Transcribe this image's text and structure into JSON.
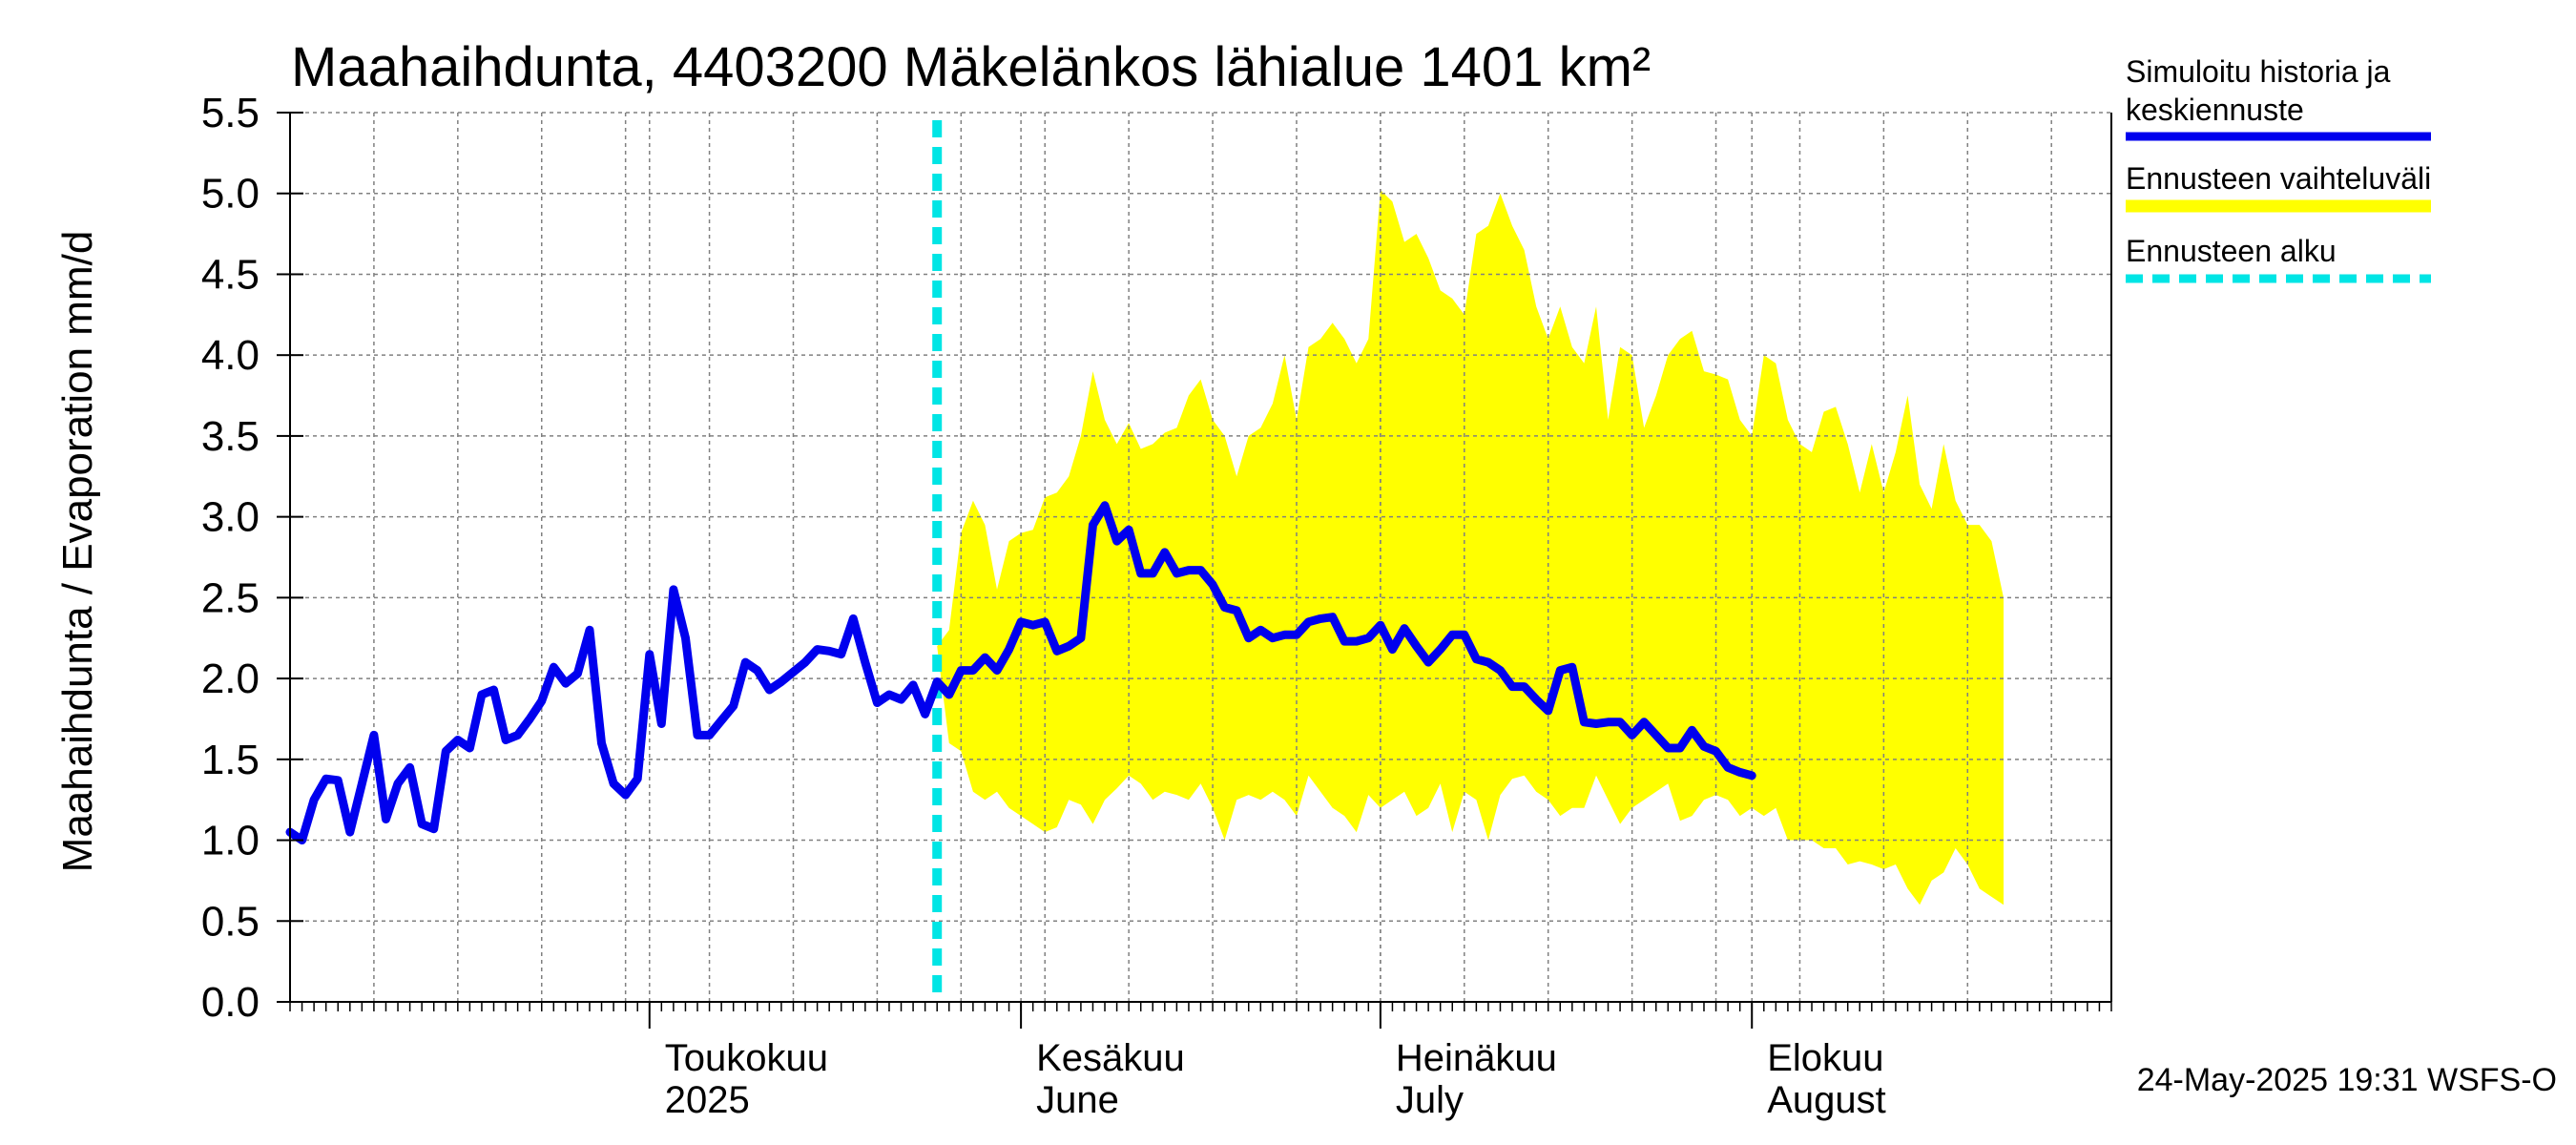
{
  "chart_data": {
    "type": "area",
    "title": "Maahaihdunta, 4403200 Mäkelänkos lähialue 1401 km²",
    "ylabel": "Maahaihdunta / Evaporation   mm/d",
    "ylim": [
      0,
      5.5
    ],
    "yticks": [
      "0.0",
      "0.5",
      "1.0",
      "1.5",
      "2.0",
      "2.5",
      "3.0",
      "3.5",
      "4.0",
      "4.5",
      "5.0",
      "5.5"
    ],
    "grid": true,
    "x_start": "2025-04-01",
    "x_end": "2025-08-31",
    "forecast_start": "2025-05-25",
    "month_labels": [
      {
        "date": "2025-05-01",
        "fi": "Toukokuu",
        "en": "2025"
      },
      {
        "date": "2025-06-01",
        "fi": "Kesäkuu",
        "en": "June"
      },
      {
        "date": "2025-07-01",
        "fi": "Heinäkuu",
        "en": "July"
      },
      {
        "date": "2025-08-01",
        "fi": "Elokuu",
        "en": "August"
      }
    ],
    "series": [
      {
        "name": "Simuloitu historia ja keskiennuste",
        "color": "#0000ee",
        "points": [
          [
            "2025-04-01",
            1.05
          ],
          [
            "2025-04-02",
            1.0
          ],
          [
            "2025-04-03",
            1.25
          ],
          [
            "2025-04-04",
            1.38
          ],
          [
            "2025-04-05",
            1.37
          ],
          [
            "2025-04-06",
            1.05
          ],
          [
            "2025-04-07",
            1.35
          ],
          [
            "2025-04-08",
            1.65
          ],
          [
            "2025-04-09",
            1.13
          ],
          [
            "2025-04-10",
            1.35
          ],
          [
            "2025-04-11",
            1.45
          ],
          [
            "2025-04-12",
            1.1
          ],
          [
            "2025-04-13",
            1.07
          ],
          [
            "2025-04-14",
            1.55
          ],
          [
            "2025-04-15",
            1.62
          ],
          [
            "2025-04-16",
            1.57
          ],
          [
            "2025-04-17",
            1.9
          ],
          [
            "2025-04-18",
            1.93
          ],
          [
            "2025-04-19",
            1.62
          ],
          [
            "2025-04-20",
            1.65
          ],
          [
            "2025-04-21",
            1.75
          ],
          [
            "2025-04-22",
            1.86
          ],
          [
            "2025-04-23",
            2.07
          ],
          [
            "2025-04-24",
            1.97
          ],
          [
            "2025-04-25",
            2.03
          ],
          [
            "2025-04-26",
            2.3
          ],
          [
            "2025-04-27",
            1.6
          ],
          [
            "2025-04-28",
            1.35
          ],
          [
            "2025-04-29",
            1.28
          ],
          [
            "2025-04-30",
            1.38
          ],
          [
            "2025-05-01",
            2.15
          ],
          [
            "2025-05-02",
            1.72
          ],
          [
            "2025-05-03",
            2.55
          ],
          [
            "2025-05-04",
            2.25
          ],
          [
            "2025-05-05",
            1.65
          ],
          [
            "2025-05-06",
            1.65
          ],
          [
            "2025-05-07",
            1.74
          ],
          [
            "2025-05-08",
            1.83
          ],
          [
            "2025-05-09",
            2.1
          ],
          [
            "2025-05-10",
            2.05
          ],
          [
            "2025-05-11",
            1.93
          ],
          [
            "2025-05-12",
            1.98
          ],
          [
            "2025-05-13",
            2.04
          ],
          [
            "2025-05-14",
            2.1
          ],
          [
            "2025-05-15",
            2.18
          ],
          [
            "2025-05-16",
            2.17
          ],
          [
            "2025-05-17",
            2.15
          ],
          [
            "2025-05-18",
            2.37
          ],
          [
            "2025-05-19",
            2.1
          ],
          [
            "2025-05-20",
            1.85
          ],
          [
            "2025-05-21",
            1.9
          ],
          [
            "2025-05-22",
            1.87
          ],
          [
            "2025-05-23",
            1.96
          ],
          [
            "2025-05-24",
            1.78
          ],
          [
            "2025-05-25",
            1.98
          ],
          [
            "2025-05-26",
            1.9
          ],
          [
            "2025-05-27",
            2.05
          ],
          [
            "2025-05-28",
            2.05
          ],
          [
            "2025-05-29",
            2.13
          ],
          [
            "2025-05-30",
            2.05
          ],
          [
            "2025-05-31",
            2.18
          ],
          [
            "2025-06-01",
            2.35
          ],
          [
            "2025-06-02",
            2.33
          ],
          [
            "2025-06-03",
            2.35
          ],
          [
            "2025-06-04",
            2.17
          ],
          [
            "2025-06-05",
            2.2
          ],
          [
            "2025-06-06",
            2.25
          ],
          [
            "2025-06-07",
            2.95
          ],
          [
            "2025-06-08",
            3.07
          ],
          [
            "2025-06-09",
            2.85
          ],
          [
            "2025-06-10",
            2.92
          ],
          [
            "2025-06-11",
            2.65
          ],
          [
            "2025-06-12",
            2.65
          ],
          [
            "2025-06-13",
            2.78
          ],
          [
            "2025-06-14",
            2.65
          ],
          [
            "2025-06-15",
            2.67
          ],
          [
            "2025-06-16",
            2.67
          ],
          [
            "2025-06-17",
            2.58
          ],
          [
            "2025-06-18",
            2.44
          ],
          [
            "2025-06-19",
            2.42
          ],
          [
            "2025-06-20",
            2.25
          ],
          [
            "2025-06-21",
            2.3
          ],
          [
            "2025-06-22",
            2.25
          ],
          [
            "2025-06-23",
            2.27
          ],
          [
            "2025-06-24",
            2.27
          ],
          [
            "2025-06-25",
            2.35
          ],
          [
            "2025-06-26",
            2.37
          ],
          [
            "2025-06-27",
            2.38
          ],
          [
            "2025-06-28",
            2.23
          ],
          [
            "2025-06-29",
            2.23
          ],
          [
            "2025-06-30",
            2.25
          ],
          [
            "2025-07-01",
            2.33
          ],
          [
            "2025-07-02",
            2.18
          ],
          [
            "2025-07-03",
            2.31
          ],
          [
            "2025-07-04",
            2.2
          ],
          [
            "2025-07-05",
            2.1
          ],
          [
            "2025-07-06",
            2.18
          ],
          [
            "2025-07-07",
            2.27
          ],
          [
            "2025-07-08",
            2.27
          ],
          [
            "2025-07-09",
            2.12
          ],
          [
            "2025-07-10",
            2.1
          ],
          [
            "2025-07-11",
            2.05
          ],
          [
            "2025-07-12",
            1.95
          ],
          [
            "2025-07-13",
            1.95
          ],
          [
            "2025-07-14",
            1.87
          ],
          [
            "2025-07-15",
            1.8
          ],
          [
            "2025-07-16",
            2.05
          ],
          [
            "2025-07-17",
            2.07
          ],
          [
            "2025-07-18",
            1.73
          ],
          [
            "2025-07-19",
            1.72
          ],
          [
            "2025-07-20",
            1.73
          ],
          [
            "2025-07-21",
            1.73
          ],
          [
            "2025-07-22",
            1.65
          ],
          [
            "2025-07-23",
            1.73
          ],
          [
            "2025-07-24",
            1.65
          ],
          [
            "2025-07-25",
            1.57
          ],
          [
            "2025-07-26",
            1.57
          ],
          [
            "2025-07-27",
            1.68
          ],
          [
            "2025-07-28",
            1.58
          ],
          [
            "2025-07-29",
            1.55
          ],
          [
            "2025-07-30",
            1.45
          ],
          [
            "2025-07-31",
            1.42
          ],
          [
            "2025-08-01",
            1.4
          ]
        ]
      },
      {
        "name": "Ennusteen vaihteluväli",
        "color": "#ffff00",
        "band": [
          [
            "2025-05-25",
            2.2,
            2.2
          ],
          [
            "2025-05-26",
            2.3,
            1.6
          ],
          [
            "2025-05-27",
            2.9,
            1.55
          ],
          [
            "2025-05-28",
            3.1,
            1.3
          ],
          [
            "2025-05-29",
            2.95,
            1.25
          ],
          [
            "2025-05-30",
            2.55,
            1.3
          ],
          [
            "2025-05-31",
            2.85,
            1.2
          ],
          [
            "2025-06-01",
            2.9,
            1.15
          ],
          [
            "2025-06-02",
            2.92,
            1.1
          ],
          [
            "2025-06-03",
            3.12,
            1.05
          ],
          [
            "2025-06-04",
            3.15,
            1.08
          ],
          [
            "2025-06-05",
            3.25,
            1.25
          ],
          [
            "2025-06-06",
            3.5,
            1.22
          ],
          [
            "2025-06-07",
            3.9,
            1.1
          ],
          [
            "2025-06-08",
            3.6,
            1.25
          ],
          [
            "2025-06-09",
            3.45,
            1.32
          ],
          [
            "2025-06-10",
            3.58,
            1.4
          ],
          [
            "2025-06-11",
            3.42,
            1.35
          ],
          [
            "2025-06-12",
            3.45,
            1.25
          ],
          [
            "2025-06-13",
            3.52,
            1.3
          ],
          [
            "2025-06-14",
            3.55,
            1.28
          ],
          [
            "2025-06-15",
            3.75,
            1.25
          ],
          [
            "2025-06-16",
            3.85,
            1.35
          ],
          [
            "2025-06-17",
            3.6,
            1.2
          ],
          [
            "2025-06-18",
            3.5,
            1.0
          ],
          [
            "2025-06-19",
            3.25,
            1.25
          ],
          [
            "2025-06-20",
            3.5,
            1.28
          ],
          [
            "2025-06-21",
            3.55,
            1.25
          ],
          [
            "2025-06-22",
            3.7,
            1.3
          ],
          [
            "2025-06-23",
            4.0,
            1.25
          ],
          [
            "2025-06-24",
            3.6,
            1.15
          ],
          [
            "2025-06-25",
            4.05,
            1.4
          ],
          [
            "2025-06-26",
            4.1,
            1.3
          ],
          [
            "2025-06-27",
            4.2,
            1.2
          ],
          [
            "2025-06-28",
            4.1,
            1.15
          ],
          [
            "2025-06-29",
            3.95,
            1.05
          ],
          [
            "2025-06-30",
            4.1,
            1.28
          ],
          [
            "2025-07-01",
            5.02,
            1.2
          ],
          [
            "2025-07-02",
            4.95,
            1.25
          ],
          [
            "2025-07-03",
            4.7,
            1.3
          ],
          [
            "2025-07-04",
            4.75,
            1.15
          ],
          [
            "2025-07-05",
            4.6,
            1.2
          ],
          [
            "2025-07-06",
            4.4,
            1.35
          ],
          [
            "2025-07-07",
            4.35,
            1.05
          ],
          [
            "2025-07-08",
            4.25,
            1.3
          ],
          [
            "2025-07-09",
            4.75,
            1.25
          ],
          [
            "2025-07-10",
            4.8,
            1.0
          ],
          [
            "2025-07-11",
            5.0,
            1.28
          ],
          [
            "2025-07-12",
            4.8,
            1.38
          ],
          [
            "2025-07-13",
            4.65,
            1.4
          ],
          [
            "2025-07-14",
            4.3,
            1.3
          ],
          [
            "2025-07-15",
            4.1,
            1.25
          ],
          [
            "2025-07-16",
            4.3,
            1.15
          ],
          [
            "2025-07-17",
            4.05,
            1.2
          ],
          [
            "2025-07-18",
            3.95,
            1.2
          ],
          [
            "2025-07-19",
            4.3,
            1.4
          ],
          [
            "2025-07-20",
            3.6,
            1.25
          ],
          [
            "2025-07-21",
            4.05,
            1.1
          ],
          [
            "2025-07-22",
            4.0,
            1.2
          ],
          [
            "2025-07-23",
            3.55,
            1.25
          ],
          [
            "2025-07-24",
            3.75,
            1.3
          ],
          [
            "2025-07-25",
            4.0,
            1.35
          ],
          [
            "2025-07-26",
            4.1,
            1.12
          ],
          [
            "2025-07-27",
            4.15,
            1.15
          ],
          [
            "2025-07-28",
            3.9,
            1.25
          ],
          [
            "2025-07-29",
            3.88,
            1.28
          ],
          [
            "2025-07-30",
            3.85,
            1.25
          ],
          [
            "2025-07-31",
            3.6,
            1.15
          ],
          [
            "2025-08-01",
            3.5,
            1.2
          ],
          [
            "2025-08-02",
            4.0,
            1.15
          ],
          [
            "2025-08-03",
            3.95,
            1.2
          ],
          [
            "2025-08-04",
            3.6,
            1.0
          ],
          [
            "2025-08-05",
            3.45,
            1.0
          ],
          [
            "2025-08-06",
            3.4,
            1.0
          ],
          [
            "2025-08-07",
            3.65,
            0.95
          ],
          [
            "2025-08-08",
            3.68,
            0.95
          ],
          [
            "2025-08-09",
            3.45,
            0.85
          ],
          [
            "2025-08-10",
            3.15,
            0.87
          ],
          [
            "2025-08-11",
            3.45,
            0.85
          ],
          [
            "2025-08-12",
            3.15,
            0.82
          ],
          [
            "2025-08-13",
            3.4,
            0.85
          ],
          [
            "2025-08-14",
            3.75,
            0.7
          ],
          [
            "2025-08-15",
            3.2,
            0.6
          ],
          [
            "2025-08-16",
            3.05,
            0.75
          ],
          [
            "2025-08-17",
            3.45,
            0.8
          ],
          [
            "2025-08-18",
            3.1,
            0.95
          ],
          [
            "2025-08-19",
            2.95,
            0.85
          ],
          [
            "2025-08-20",
            2.95,
            0.7
          ],
          [
            "2025-08-21",
            2.85,
            0.65
          ],
          [
            "2025-08-22",
            2.5,
            0.6
          ]
        ]
      },
      {
        "name": "Ennusteen alku",
        "color": "#00e5e5"
      }
    ],
    "legend": [
      {
        "label_lines": [
          "Simuloitu historia ja",
          "keskiennuste"
        ],
        "color": "#0000ee",
        "style": "solid"
      },
      {
        "label_lines": [
          "Ennusteen vaihteluväli"
        ],
        "color": "#ffff00",
        "style": "solid"
      },
      {
        "label_lines": [
          "Ennusteen alku"
        ],
        "color": "#00e5e5",
        "style": "dashed"
      }
    ],
    "legend_position": "right",
    "footer": "24-May-2025 19:31 WSFS-O"
  }
}
